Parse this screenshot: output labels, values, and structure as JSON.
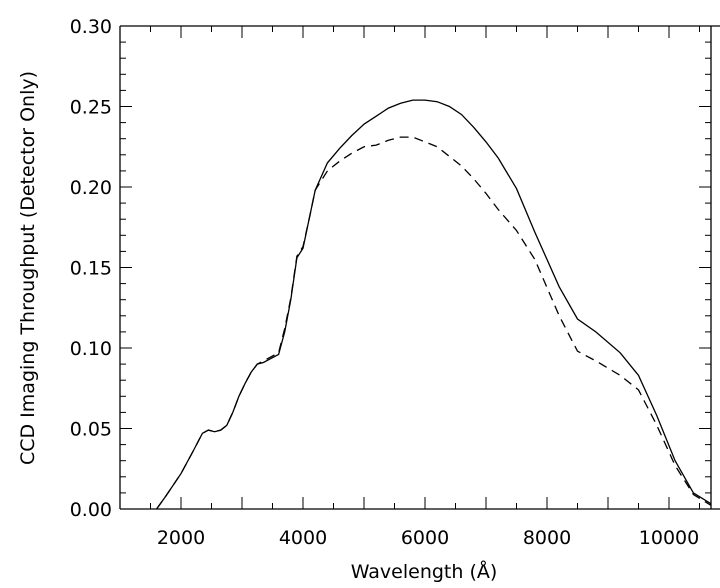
{
  "chart_data": {
    "type": "line",
    "title": "",
    "xlabel": "Wavelength (Å)",
    "ylabel": "CCD Imaging Throughput (Detector Only)",
    "xlim": [
      1000,
      11000
    ],
    "ylim": [
      0.0,
      0.3
    ],
    "grid": false,
    "legend": "none",
    "x_ticks": [
      {
        "value": 2000,
        "label": "2000"
      },
      {
        "value": 4000,
        "label": "4000"
      },
      {
        "value": 6000,
        "label": "6000"
      },
      {
        "value": 8000,
        "label": "8000"
      },
      {
        "value": 10000,
        "label": "10000"
      }
    ],
    "y_ticks": [
      {
        "value": 0.0,
        "label": "0.00"
      },
      {
        "value": 0.05,
        "label": "0.05"
      },
      {
        "value": 0.1,
        "label": "0.10"
      },
      {
        "value": 0.15,
        "label": "0.15"
      },
      {
        "value": 0.2,
        "label": "0.20"
      },
      {
        "value": 0.25,
        "label": "0.25"
      },
      {
        "value": 0.3,
        "label": "0.30"
      }
    ],
    "series": [
      {
        "style": "solid",
        "color": "#000000",
        "x": [
          1600,
          1750,
          2000,
          2200,
          2350,
          2450,
          2550,
          2650,
          2750,
          2850,
          2950,
          3050,
          3150,
          3250,
          3350,
          3450,
          3600,
          3700,
          3800,
          3900,
          4000,
          4100,
          4200,
          4400,
          4600,
          4800,
          5000,
          5200,
          5400,
          5600,
          5800,
          6000,
          6200,
          6400,
          6600,
          6800,
          7000,
          7200,
          7500,
          7800,
          8200,
          8500,
          8800,
          9200,
          9500,
          9800,
          10100,
          10400,
          10700,
          11000
        ],
        "y": [
          0.0,
          0.008,
          0.022,
          0.036,
          0.047,
          0.049,
          0.048,
          0.049,
          0.052,
          0.06,
          0.07,
          0.078,
          0.085,
          0.09,
          0.091,
          0.093,
          0.096,
          0.11,
          0.13,
          0.156,
          0.162,
          0.18,
          0.198,
          0.215,
          0.224,
          0.232,
          0.239,
          0.244,
          0.249,
          0.252,
          0.254,
          0.254,
          0.253,
          0.25,
          0.245,
          0.237,
          0.228,
          0.218,
          0.199,
          0.172,
          0.138,
          0.118,
          0.11,
          0.097,
          0.083,
          0.058,
          0.03,
          0.01,
          0.003,
          0.0
        ]
      },
      {
        "style": "dashed",
        "color": "#000000",
        "x": [
          1600,
          1750,
          2000,
          2200,
          2350,
          2450,
          2550,
          2650,
          2750,
          2850,
          2950,
          3050,
          3150,
          3250,
          3350,
          3450,
          3600,
          3700,
          3800,
          3900,
          4000,
          4100,
          4200,
          4400,
          4600,
          4800,
          5000,
          5200,
          5400,
          5600,
          5800,
          6000,
          6200,
          6400,
          6600,
          6800,
          7000,
          7200,
          7500,
          7800,
          8200,
          8500,
          8800,
          9200,
          9500,
          9800,
          10100,
          10400,
          10700,
          11000
        ],
        "y": [
          0.0,
          0.008,
          0.022,
          0.036,
          0.047,
          0.049,
          0.048,
          0.049,
          0.052,
          0.06,
          0.07,
          0.078,
          0.085,
          0.09,
          0.092,
          0.094,
          0.097,
          0.112,
          0.131,
          0.157,
          0.163,
          0.18,
          0.198,
          0.21,
          0.216,
          0.221,
          0.225,
          0.226,
          0.229,
          0.231,
          0.231,
          0.228,
          0.225,
          0.219,
          0.213,
          0.205,
          0.196,
          0.186,
          0.173,
          0.155,
          0.12,
          0.098,
          0.092,
          0.083,
          0.074,
          0.052,
          0.027,
          0.009,
          0.002,
          0.0
        ]
      }
    ]
  }
}
